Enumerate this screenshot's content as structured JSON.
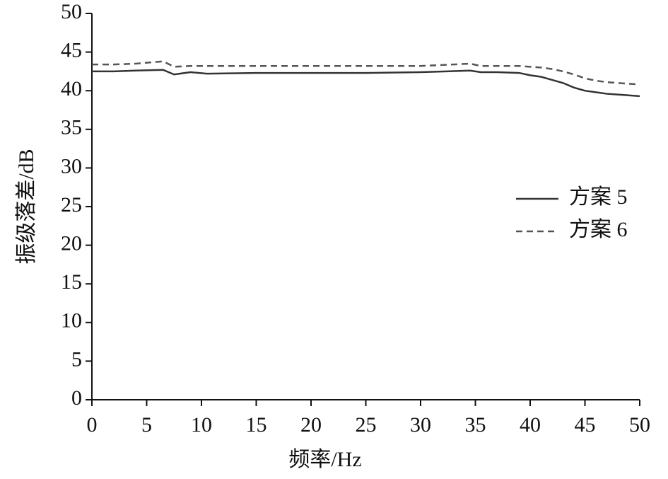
{
  "chart_data": {
    "type": "line",
    "x_label": "频率/Hz",
    "y_label": "振级落差/dB",
    "x": [
      0,
      2,
      4,
      6.5,
      7.5,
      9,
      10.5,
      15,
      20,
      25,
      30,
      34.5,
      35.5,
      37,
      39,
      40,
      41,
      42,
      43,
      44,
      45,
      46,
      47,
      48,
      50
    ],
    "series": [
      {
        "name": "方案 5",
        "color": "#333333",
        "dash": "solid",
        "values": [
          42.5,
          42.5,
          42.6,
          42.7,
          42.1,
          42.4,
          42.2,
          42.3,
          42.3,
          42.3,
          42.4,
          42.6,
          42.4,
          42.4,
          42.3,
          42.0,
          41.8,
          41.4,
          41.0,
          40.4,
          40.0,
          39.8,
          39.6,
          39.5,
          39.3
        ]
      },
      {
        "name": "方案 6",
        "color": "#555555",
        "dash": "dashed",
        "values": [
          43.4,
          43.4,
          43.5,
          43.8,
          43.1,
          43.2,
          43.2,
          43.2,
          43.2,
          43.2,
          43.2,
          43.5,
          43.2,
          43.2,
          43.2,
          43.1,
          43.0,
          42.8,
          42.5,
          42.1,
          41.6,
          41.3,
          41.1,
          41.0,
          40.8
        ]
      }
    ],
    "xlim": [
      0,
      50
    ],
    "xticks": [
      0,
      5,
      10,
      15,
      20,
      25,
      30,
      35,
      40,
      45,
      50
    ],
    "ylim": [
      0,
      50
    ],
    "yticks": [
      0,
      5,
      10,
      15,
      20,
      25,
      30,
      35,
      40,
      45,
      50
    ],
    "grid": false,
    "legend": "right"
  }
}
